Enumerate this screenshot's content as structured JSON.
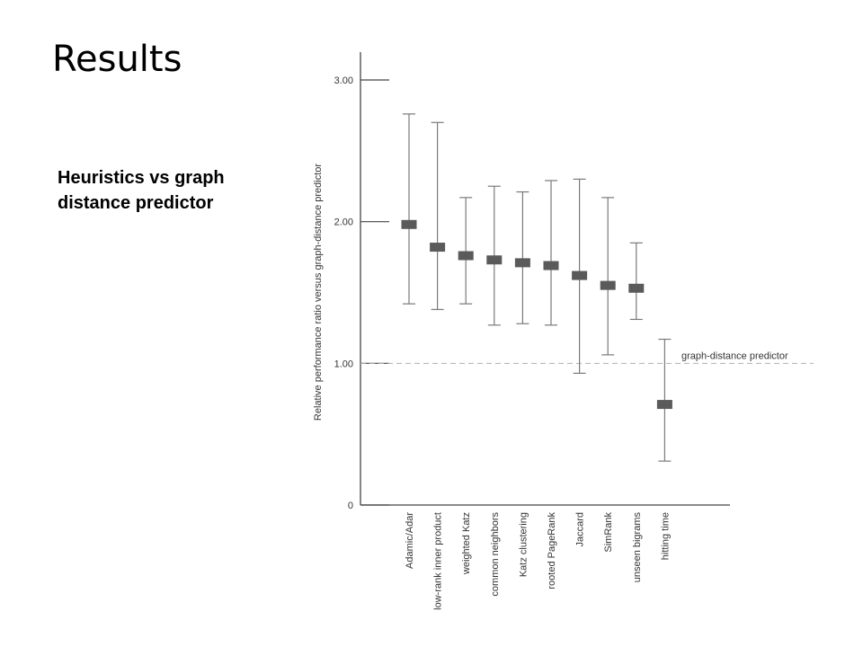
{
  "slide": {
    "title": "Results",
    "subtitle_lines": [
      "Heuristics vs graph",
      "distance predictor"
    ]
  },
  "chart_data": {
    "type": "error-bar",
    "ylabel": "Relative performance ratio versus graph-distance predictor",
    "xlabel": "",
    "ylim": [
      0,
      3
    ],
    "yticks": [
      "0",
      "1.00",
      "2.00",
      "3.00"
    ],
    "grid": false,
    "reference_line": {
      "y": 1.0,
      "label": "graph-distance predictor"
    },
    "colors": {
      "marker": "#5a5a5a",
      "whisker": "#7a7a7a",
      "axis": "#444444",
      "reference": "#b0b0b0",
      "text": "#333333"
    },
    "categories": [
      "Adamic/Adar",
      "low-rank inner product",
      "weighted Katz",
      "common neighbors",
      "Katz clustering",
      "rooted PageRank",
      "Jaccard",
      "SimRank",
      "unseen bigrams",
      "hitting time"
    ],
    "series": [
      {
        "values": [
          1.98,
          1.82,
          1.76,
          1.73,
          1.71,
          1.69,
          1.62,
          1.55,
          1.53,
          0.71
        ],
        "low": [
          1.42,
          1.38,
          1.42,
          1.27,
          1.28,
          1.27,
          0.93,
          1.06,
          1.31,
          0.31
        ],
        "high": [
          2.76,
          2.7,
          2.17,
          2.25,
          2.21,
          2.29,
          2.3,
          2.17,
          1.85,
          1.17
        ]
      }
    ]
  }
}
